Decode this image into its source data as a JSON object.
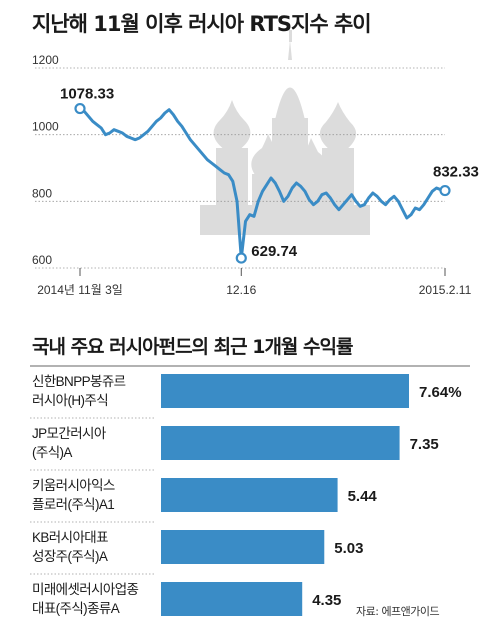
{
  "charts_meta": {
    "line_title": "지난해 11월 이후 러시아 RTS지수 추이",
    "bar_title": "국내 주요 러시아펀드의 최근 1개월 수익률",
    "source": "자료: 에프앤가이드"
  },
  "chart_data": [
    {
      "type": "line",
      "title": "지난해 11월 이후 러시아 RTS지수 추이",
      "y_ticks": [
        "1200",
        "1000",
        "800",
        "600"
      ],
      "ylim": [
        600,
        1200
      ],
      "x_tick_labels": [
        "2014년 11월 3일",
        "12.16",
        "2015.2.11"
      ],
      "x_tick_index": [
        0,
        38,
        86
      ],
      "grid": true,
      "series_color": "#3a8cc6",
      "values": [
        1078.33,
        1070,
        1055,
        1040,
        1030,
        1020,
        1000,
        1005,
        1015,
        1010,
        1005,
        995,
        990,
        985,
        990,
        1000,
        1010,
        1025,
        1040,
        1050,
        1065,
        1075,
        1060,
        1040,
        1025,
        1005,
        985,
        970,
        955,
        940,
        925,
        915,
        905,
        895,
        885,
        880,
        860,
        800,
        629.74,
        740,
        760,
        755,
        800,
        830,
        850,
        870,
        855,
        830,
        800,
        815,
        840,
        855,
        845,
        830,
        805,
        790,
        800,
        820,
        825,
        810,
        790,
        775,
        790,
        805,
        820,
        800,
        785,
        790,
        810,
        825,
        815,
        800,
        790,
        805,
        815,
        800,
        775,
        750,
        760,
        780,
        775,
        790,
        810,
        830,
        840,
        835,
        832.33
      ],
      "annotations": [
        {
          "index": 0,
          "label": "1078.33"
        },
        {
          "index": 38,
          "label": "629.74"
        },
        {
          "index": 86,
          "label": "832.33"
        }
      ]
    },
    {
      "type": "bar",
      "orientation": "horizontal",
      "title": "국내 주요 러시아펀드의 최근 1개월 수익률",
      "categories": [
        [
          "신한BNPP봉쥬르",
          "러시아(H)주식"
        ],
        [
          "JP모간러시아",
          "(주식)A"
        ],
        [
          "키움러시아익스",
          "플로러(주식)A1"
        ],
        [
          "KB러시아대표",
          "성장주(주식)A"
        ],
        [
          "미래에셋러시아업종",
          "대표(주식)종류A"
        ]
      ],
      "values": [
        7.64,
        7.35,
        5.44,
        5.03,
        4.35
      ],
      "value_labels": [
        "7.64%",
        "7.35",
        "5.44",
        "5.03",
        "4.35"
      ],
      "bar_color": "#3a8cc6"
    }
  ]
}
